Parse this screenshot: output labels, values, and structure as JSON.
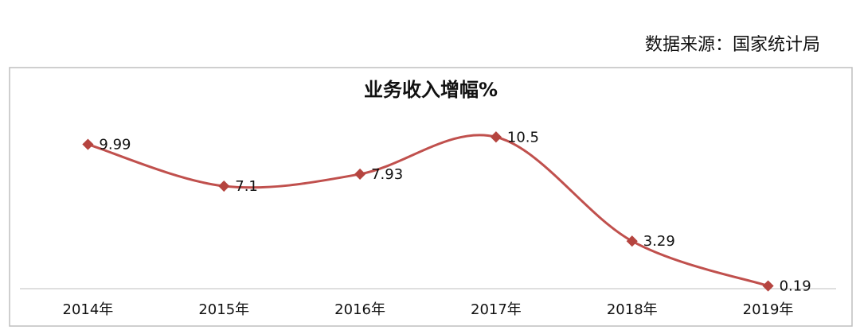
{
  "chart_data": {
    "type": "line",
    "title": "业务收入增幅%",
    "source": "数据来源：国家统计局",
    "categories": [
      "2014年",
      "2015年",
      "2016年",
      "2017年",
      "2018年",
      "2019年"
    ],
    "values": [
      9.99,
      7.1,
      7.93,
      10.5,
      3.29,
      0.19
    ],
    "color": "#c0504d",
    "ylim": [
      0,
      12
    ],
    "smooth": true,
    "data_labels": true
  }
}
